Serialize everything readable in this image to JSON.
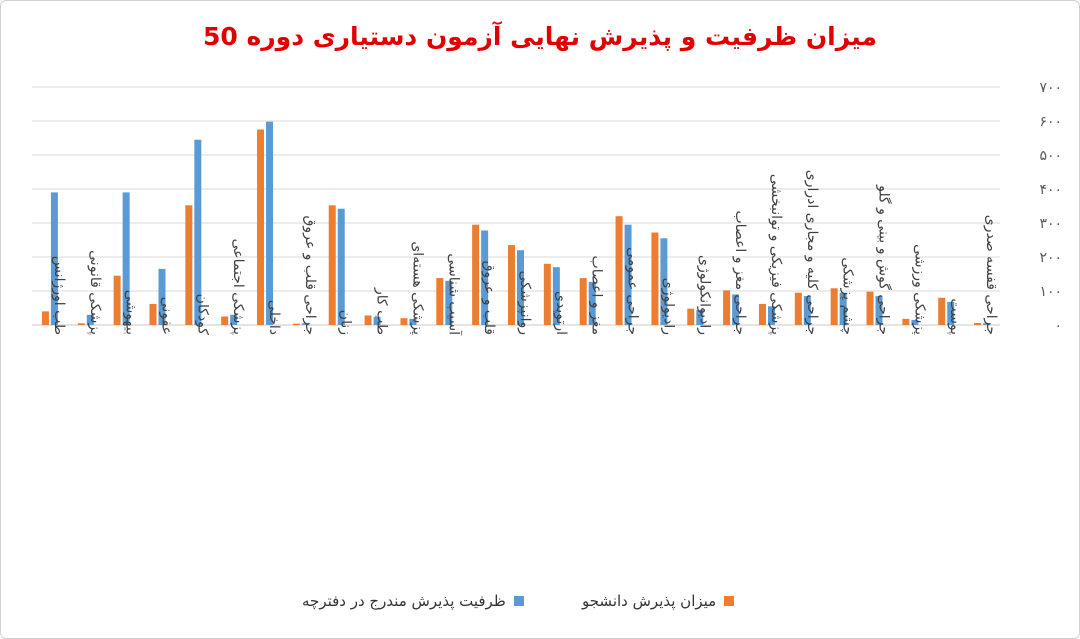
{
  "chart_data": {
    "type": "bar",
    "title": "میزان ظرفیت و پذیرش نهایی آزمون دستیاری دوره 50",
    "ylim": [
      0,
      700
    ],
    "yticks": [
      0,
      100,
      200,
      300,
      400,
      500,
      600,
      700
    ],
    "ytick_labels": [
      "۰",
      "۱۰۰",
      "۲۰۰",
      "۳۰۰",
      "۴۰۰",
      "۵۰۰",
      "۶۰۰",
      "۷۰۰"
    ],
    "grid": true,
    "legend_position": "bottom",
    "categories": [
      "طب اورژانس",
      "پزشکی قانونی",
      "بیهوشی",
      "عفونی",
      "کودکان",
      "پزشکی اجتماعی",
      "داخلی",
      "جراحی قلب و عروق",
      "زنان",
      "طب کار",
      "پزشکی هسته‌ای",
      "آسیب شناسی",
      "قلب و عروق",
      "روانپزشکی",
      "ارتوپدی",
      "مغز و اعصاب",
      "جراحی عمومی",
      "رادیولوژی",
      "رادیوانکولوژی",
      "جراحی مغز و اعصاب",
      "پزشکی فیزیکی و توانبخشی",
      "جراحی کلیه و مجاری ادراری",
      "چشم پزشکی",
      "جراحی گوش و بینی و گلو",
      "پزشکی ورزشی",
      "پوست",
      "جراحی قفسه صدری"
    ],
    "series": [
      {
        "name": "میزان پذیرش دانشجو",
        "color": "#ed7d31",
        "values": [
          40,
          5,
          145,
          62,
          352,
          25,
          575,
          4,
          352,
          28,
          20,
          138,
          295,
          235,
          180,
          138,
          320,
          272,
          48,
          102,
          62,
          95,
          108,
          98,
          18,
          80,
          6
        ]
      },
      {
        "name": "ظرفیت پذیرش مندرج در دفترچه",
        "color": "#5b9bd5",
        "values": [
          390,
          30,
          390,
          165,
          545,
          30,
          598,
          5,
          342,
          24,
          18,
          130,
          278,
          220,
          170,
          127,
          295,
          255,
          44,
          90,
          55,
          85,
          95,
          85,
          15,
          68,
          5
        ]
      }
    ]
  }
}
